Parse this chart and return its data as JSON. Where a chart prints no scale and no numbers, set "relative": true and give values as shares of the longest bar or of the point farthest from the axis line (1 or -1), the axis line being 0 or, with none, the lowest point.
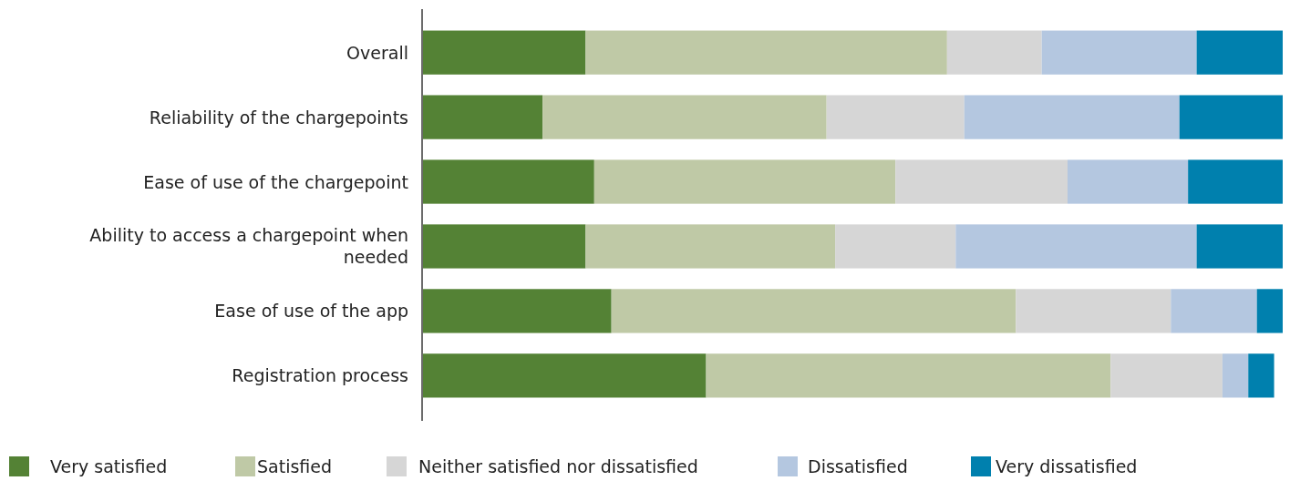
{
  "chart_data": {
    "type": "bar",
    "orientation": "horizontal",
    "stacked": true,
    "relative": true,
    "legend": "bottom",
    "categories": [
      "Overall",
      "Reliability of the chargepoints",
      "Ease of use of the chargepoint",
      "Ability to access a chargepoint when needed",
      "Ease of use of the app",
      "Registration process"
    ],
    "series": [
      {
        "name": "Very satisfied",
        "color": "#548235",
        "values": [
          0.19,
          0.14,
          0.2,
          0.19,
          0.22,
          0.33
        ]
      },
      {
        "name": "Satisfied",
        "color": "#bfc9a6",
        "values": [
          0.42,
          0.33,
          0.35,
          0.29,
          0.47,
          0.47
        ]
      },
      {
        "name": "Neither satisfied nor dissatisfied",
        "color": "#d6d6d6",
        "values": [
          0.11,
          0.16,
          0.2,
          0.14,
          0.18,
          0.13
        ]
      },
      {
        "name": "Dissatisfied",
        "color": "#b4c7e0",
        "values": [
          0.18,
          0.25,
          0.14,
          0.28,
          0.1,
          0.03
        ]
      },
      {
        "name": "Very dissatisfied",
        "color": "#0080ae",
        "values": [
          0.1,
          0.12,
          0.11,
          0.1,
          0.03,
          0.03
        ]
      }
    ]
  }
}
